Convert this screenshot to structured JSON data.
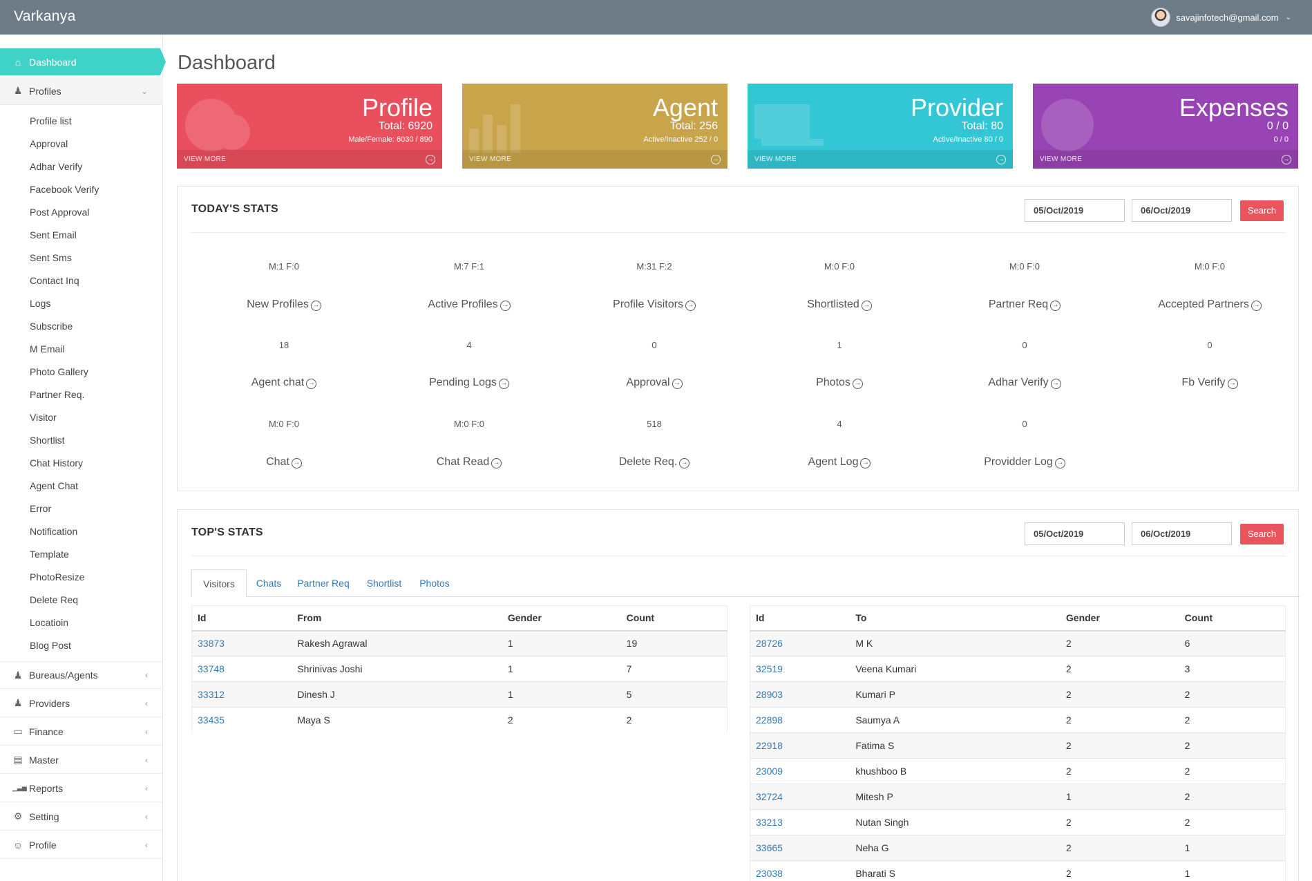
{
  "app": {
    "brand": "Varkanya",
    "user_email": "savajinfotech@gmail.com"
  },
  "sidebar": {
    "active": {
      "label": "Dashboard",
      "icon": "home-icon"
    },
    "profiles_group": {
      "label": "Profiles",
      "icon": "users-icon"
    },
    "sub_items": [
      "Profile list",
      "Approval",
      "Adhar Verify",
      "Facebook Verify",
      "Post Approval",
      "Sent Email",
      "Sent Sms",
      "Contact Inq",
      "Logs",
      "Subscribe",
      "M Email",
      "Photo Gallery",
      "Partner Req.",
      "Visitor",
      "Shortlist",
      "Chat History",
      "Agent Chat",
      "Error",
      "Notification",
      "Template",
      "PhotoResize",
      "Delete Req",
      "Locatioin",
      "Blog Post"
    ],
    "groups": [
      {
        "label": "Bureaus/Agents",
        "icon": "users-icon"
      },
      {
        "label": "Providers",
        "icon": "users-icon"
      },
      {
        "label": "Finance",
        "icon": "folder-icon"
      },
      {
        "label": "Master",
        "icon": "clipboard-icon"
      },
      {
        "label": "Reports",
        "icon": "bar-chart-icon"
      },
      {
        "label": "Setting",
        "icon": "gear-icon"
      },
      {
        "label": "Profile",
        "icon": "user-icon"
      }
    ]
  },
  "page": {
    "title": "Dashboard"
  },
  "cards": [
    {
      "title": "Profile",
      "line1": "Total: 6920",
      "line2": "Male/Female: 6030 / 890",
      "footer": "VIEW MORE",
      "color": "#ea4f5e"
    },
    {
      "title": "Agent",
      "line1": "Total: 256",
      "line2": "Active/Inactive 252 / 0",
      "footer": "VIEW MORE",
      "color": "#c8a44a"
    },
    {
      "title": "Provider",
      "line1": "Total: 80",
      "line2": "Active/Inactive 80 / 0",
      "footer": "VIEW MORE",
      "color": "#33c6d4"
    },
    {
      "title": "Expenses",
      "line1": "0 / 0",
      "line2": "0 / 0",
      "footer": "VIEW MORE",
      "color": "#9944b4"
    }
  ],
  "today_stats": {
    "title": "TODAY'S STATS",
    "from_date": "05/Oct/2019",
    "to_date": "06/Oct/2019",
    "search_label": "Search",
    "items": [
      {
        "value": "M:1 F:0",
        "label": "New Profiles"
      },
      {
        "value": "M:7 F:1",
        "label": "Active Profiles"
      },
      {
        "value": "M:31 F:2",
        "label": "Profile Visitors"
      },
      {
        "value": "M:0 F:0",
        "label": "Shortlisted"
      },
      {
        "value": "M:0 F:0",
        "label": "Partner Req"
      },
      {
        "value": "M:0 F:0",
        "label": "Accepted Partners"
      },
      {
        "value": "18",
        "label": "Agent chat"
      },
      {
        "value": "4",
        "label": "Pending Logs"
      },
      {
        "value": "0",
        "label": "Approval"
      },
      {
        "value": "1",
        "label": "Photos"
      },
      {
        "value": "0",
        "label": "Adhar Verify"
      },
      {
        "value": "0",
        "label": "Fb Verify"
      },
      {
        "value": "M:0 F:0",
        "label": "Chat"
      },
      {
        "value": "M:0 F:0",
        "label": "Chat Read"
      },
      {
        "value": "518",
        "label": "Delete Req."
      },
      {
        "value": "4",
        "label": "Agent Log"
      },
      {
        "value": "0",
        "label": "Providder Log"
      }
    ]
  },
  "top_stats": {
    "title": "TOP'S STATS",
    "from_date": "05/Oct/2019",
    "to_date": "06/Oct/2019",
    "search_label": "Search",
    "tabs": [
      "Visitors",
      "Chats",
      "Partner Req",
      "Shortlist",
      "Photos"
    ],
    "left_table": {
      "headers": [
        "Id",
        "From",
        "Gender",
        "Count"
      ],
      "rows": [
        [
          "33873",
          "Rakesh Agrawal",
          "1",
          "19"
        ],
        [
          "33748",
          "Shrinivas Joshi",
          "1",
          "7"
        ],
        [
          "33312",
          "Dinesh J",
          "1",
          "5"
        ],
        [
          "33435",
          "Maya S",
          "2",
          "2"
        ]
      ]
    },
    "right_table": {
      "headers": [
        "Id",
        "To",
        "Gender",
        "Count"
      ],
      "rows": [
        [
          "28726",
          "M K",
          "2",
          "6"
        ],
        [
          "32519",
          "Veena Kumari",
          "2",
          "3"
        ],
        [
          "28903",
          "Kumari P",
          "2",
          "2"
        ],
        [
          "22898",
          "Saumya A",
          "2",
          "2"
        ],
        [
          "22918",
          "Fatima S",
          "2",
          "2"
        ],
        [
          "23009",
          "khushboo B",
          "2",
          "2"
        ],
        [
          "32724",
          "Mitesh P",
          "1",
          "2"
        ],
        [
          "33213",
          "Nutan Singh",
          "2",
          "2"
        ],
        [
          "33665",
          "Neha G",
          "2",
          "1"
        ],
        [
          "23038",
          "Bharati S",
          "2",
          "1"
        ]
      ]
    }
  }
}
